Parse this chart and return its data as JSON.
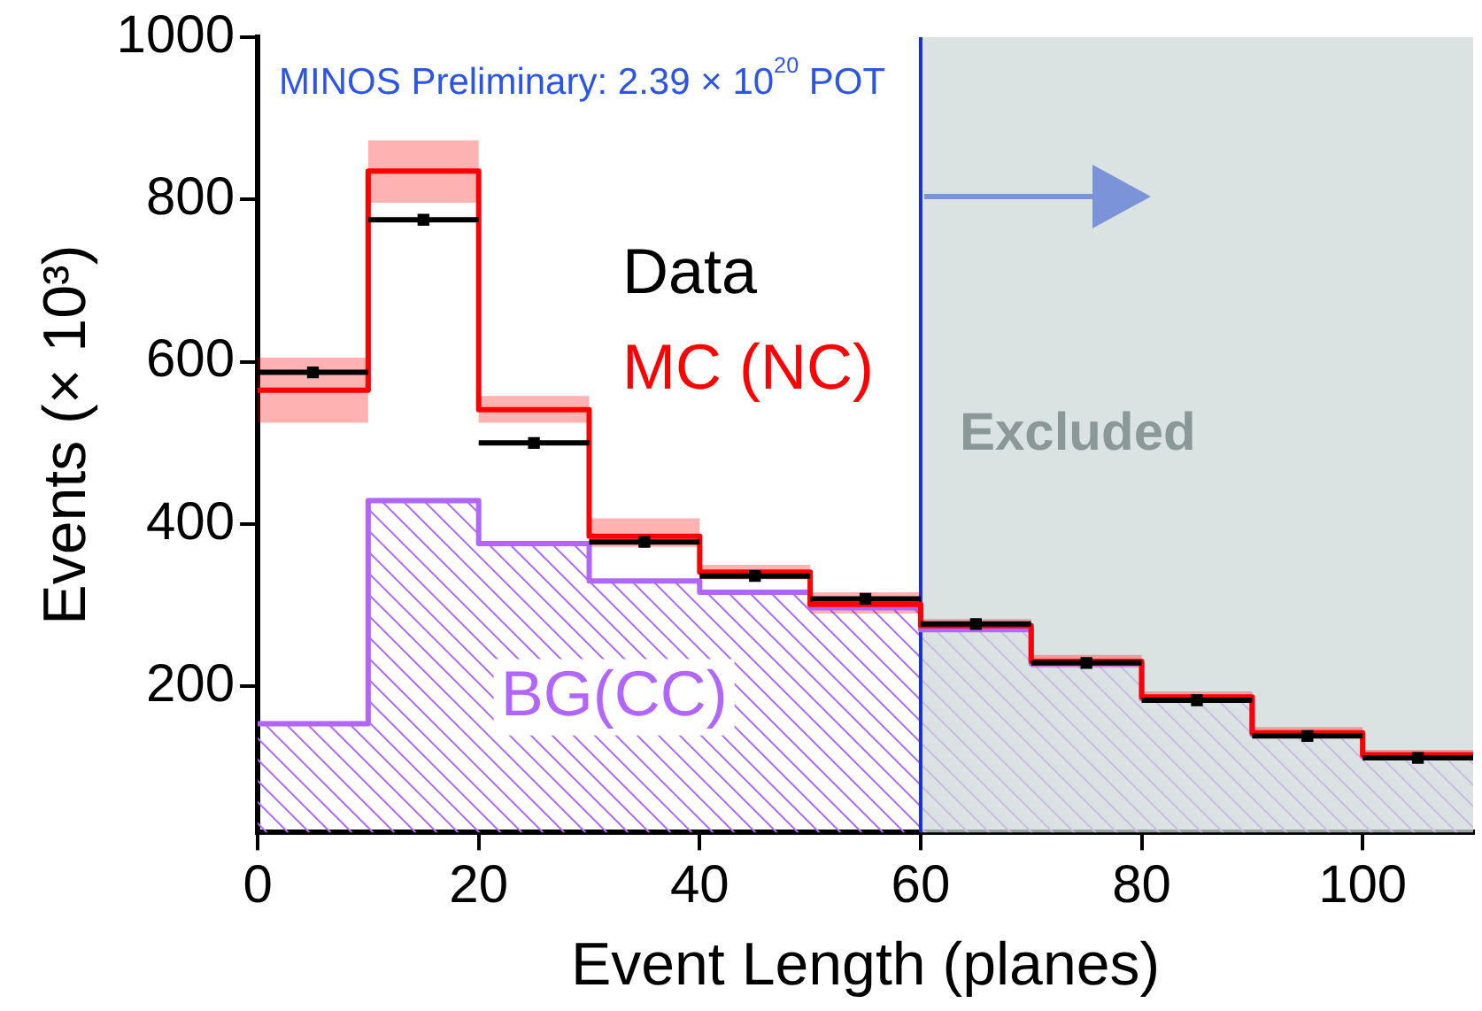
{
  "chart_data": {
    "type": "histogram",
    "xlabel": "Event Length (planes)",
    "ylabel": "Events (× 10³)",
    "annotations": [
      "MINOS Preliminary: 2.39 × 10$^{20}$ POT"
    ],
    "bins": [
      0,
      10,
      20,
      30,
      40,
      50,
      60,
      70,
      80,
      90,
      100,
      110
    ],
    "series": [
      {
        "name": "MC (NC)",
        "type": "step",
        "color": "#ff0000",
        "x": [
          0,
          10,
          20,
          30,
          40,
          50,
          60,
          70,
          80,
          90,
          100,
          110
        ],
        "values": [
          565,
          835,
          541,
          385,
          341,
          301,
          275,
          231,
          187,
          143,
          116,
          116
        ],
        "lower": [
          525,
          796,
          525,
          372,
          332,
          290,
          267,
          223,
          180,
          136,
          110,
          110
        ],
        "upper": [
          605,
          873,
          558,
          407,
          350,
          316,
          283,
          239,
          194,
          150,
          122,
          122
        ]
      },
      {
        "name": "BG(CC)",
        "type": "histogram",
        "color": "#b266ff",
        "values": [
          154,
          429,
          376,
          330,
          316,
          297,
          270,
          228,
          185,
          141,
          114
        ]
      },
      {
        "name": "Data",
        "type": "scatter",
        "marker": "square",
        "color": "#000000",
        "x": [
          5,
          15,
          25,
          35,
          45,
          55,
          65,
          75,
          85,
          95,
          105
        ],
        "values": [
          587,
          775,
          500,
          378,
          336,
          308,
          277,
          229,
          183,
          139,
          112
        ],
        "xerrors": [
          5,
          5,
          5,
          5,
          5,
          5,
          5,
          5,
          5,
          5,
          5
        ]
      }
    ],
    "ref_lines": [
      {
        "axis": "x",
        "value": 60,
        "color": "#1a2fd0"
      }
    ],
    "bands": [
      {
        "axis": "x",
        "from": 60,
        "to": 110,
        "label": "Excluded",
        "color": "#cfd8d8"
      }
    ],
    "xlim": [
      0,
      110
    ],
    "xticks": [
      0,
      20,
      40,
      60,
      80,
      100
    ],
    "ylim": [
      20,
      1000
    ],
    "yticks": [
      200,
      400,
      600,
      800,
      1000
    ],
    "grid": false,
    "legend": false
  }
}
